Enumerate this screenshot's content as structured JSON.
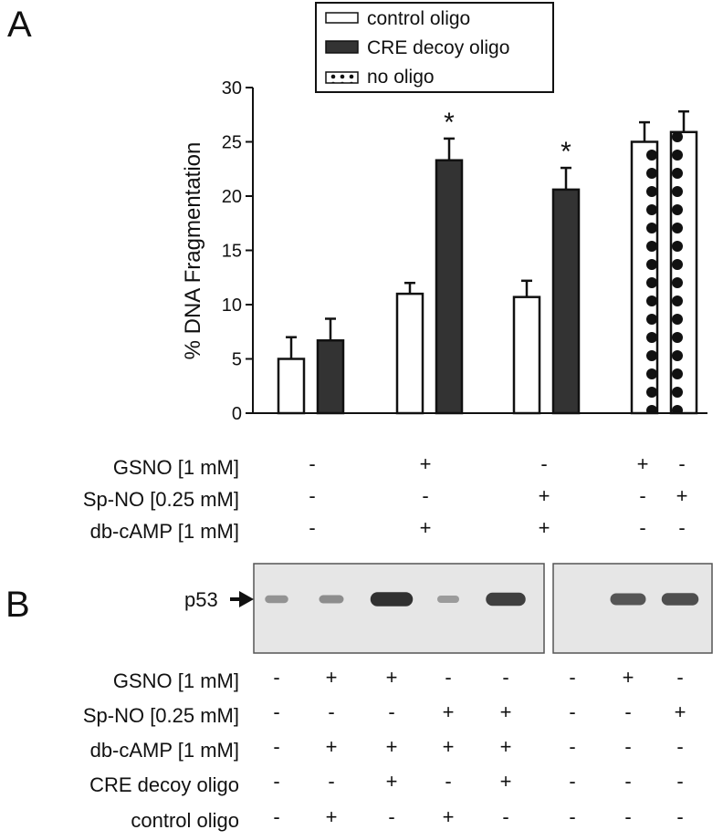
{
  "panel_a_label": "A",
  "panel_b_label": "B",
  "legend": [
    {
      "label": "control oligo",
      "style": "open"
    },
    {
      "label": "CRE decoy oligo",
      "style": "filled"
    },
    {
      "label": "no oligo",
      "style": "dotted"
    }
  ],
  "colors": {
    "filled_bar": "#333333",
    "open_bar": "#ffffff",
    "outline": "#111111",
    "blot_bg": "#e6e6e6",
    "band": "#2a2a2a"
  },
  "chart_data": {
    "type": "bar",
    "ylabel": "% DNA Fragmentation",
    "ylim": [
      0,
      30
    ],
    "yticks": [
      0,
      5,
      10,
      15,
      20,
      25,
      30
    ],
    "grid": false,
    "bars": [
      {
        "series": "control oligo",
        "value": 5.0,
        "error": 2.0,
        "annotation": ""
      },
      {
        "series": "CRE decoy oligo",
        "value": 6.7,
        "error": 2.0,
        "annotation": ""
      },
      {
        "series": "control oligo",
        "value": 11.0,
        "error": 1.0,
        "annotation": ""
      },
      {
        "series": "CRE decoy oligo",
        "value": 23.3,
        "error": 2.0,
        "annotation": "*"
      },
      {
        "series": "control oligo",
        "value": 10.7,
        "error": 1.5,
        "annotation": ""
      },
      {
        "series": "CRE decoy oligo",
        "value": 20.6,
        "error": 2.0,
        "annotation": "*"
      },
      {
        "series": "no oligo",
        "value": 25.0,
        "error": 1.8,
        "annotation": ""
      },
      {
        "series": "no oligo",
        "value": 25.9,
        "error": 1.9,
        "annotation": ""
      }
    ],
    "treatment_rows": [
      {
        "label": "GSNO [1 mM]",
        "values": [
          "-",
          "+",
          "-",
          "+",
          "-"
        ]
      },
      {
        "label": "Sp-NO [0.25 mM]",
        "values": [
          "-",
          "-",
          "+",
          "-",
          "+"
        ]
      },
      {
        "label": "db-cAMP [1 mM]",
        "values": [
          "-",
          "+",
          "+",
          "-",
          "-"
        ]
      }
    ]
  },
  "blot": {
    "protein_label": "p53",
    "band_intensity": [
      0.25,
      0.3,
      0.95,
      0.2,
      0.85,
      0.0,
      0.7,
      0.75
    ],
    "treatment_rows": [
      {
        "label": "GSNO [1 mM]",
        "values": [
          "-",
          "+",
          "+",
          "-",
          "-",
          "-",
          "+",
          "-"
        ]
      },
      {
        "label": "Sp-NO [0.25 mM]",
        "values": [
          "-",
          "-",
          "-",
          "+",
          "+",
          "-",
          "-",
          "+"
        ]
      },
      {
        "label": "db-cAMP [1 mM]",
        "values": [
          "-",
          "+",
          "+",
          "+",
          "+",
          "-",
          "-",
          "-"
        ]
      },
      {
        "label": "CRE decoy oligo",
        "values": [
          "-",
          "-",
          "+",
          "-",
          "+",
          "-",
          "-",
          "-"
        ]
      },
      {
        "label": "control oligo",
        "values": [
          "-",
          "+",
          "-",
          "+",
          "-",
          "-",
          "-",
          "-"
        ]
      }
    ]
  }
}
